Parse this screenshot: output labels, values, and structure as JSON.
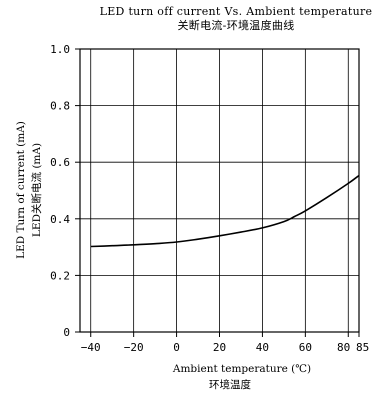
{
  "chart_data": {
    "type": "line",
    "title": "LED turn off current Vs. Ambient temperature",
    "subtitle": "关断电流-环境温度曲线",
    "xlabel": "Ambient temperature (℃)",
    "xlabel_cn": "环境温度",
    "ylabel": "LED Turn of current (mA)",
    "ylabel_cn": "LED关断电流 (mA)",
    "xlim": [
      -45,
      85
    ],
    "ylim": [
      0,
      1.0
    ],
    "x_ticks": [
      -40,
      -20,
      0,
      20,
      40,
      60,
      80,
      85
    ],
    "x_tick_labels": [
      "−40",
      "−20",
      "0",
      "20",
      "40",
      "60",
      "80",
      "85"
    ],
    "y_ticks": [
      0,
      0.2,
      0.4,
      0.6,
      0.8,
      1.0
    ],
    "y_tick_labels": [
      "0",
      "0.2",
      "0.4",
      "0.6",
      "0.8",
      "1.0"
    ],
    "grid": true,
    "legend": "none",
    "series": [
      {
        "x": [
          -40,
          -30,
          -20,
          -10,
          0,
          10,
          20,
          30,
          40,
          50,
          55,
          60,
          70,
          80,
          85
        ],
        "y": [
          0.302,
          0.305,
          0.308,
          0.312,
          0.318,
          0.328,
          0.34,
          0.353,
          0.368,
          0.39,
          0.408,
          0.428,
          0.475,
          0.525,
          0.553
        ]
      }
    ]
  }
}
